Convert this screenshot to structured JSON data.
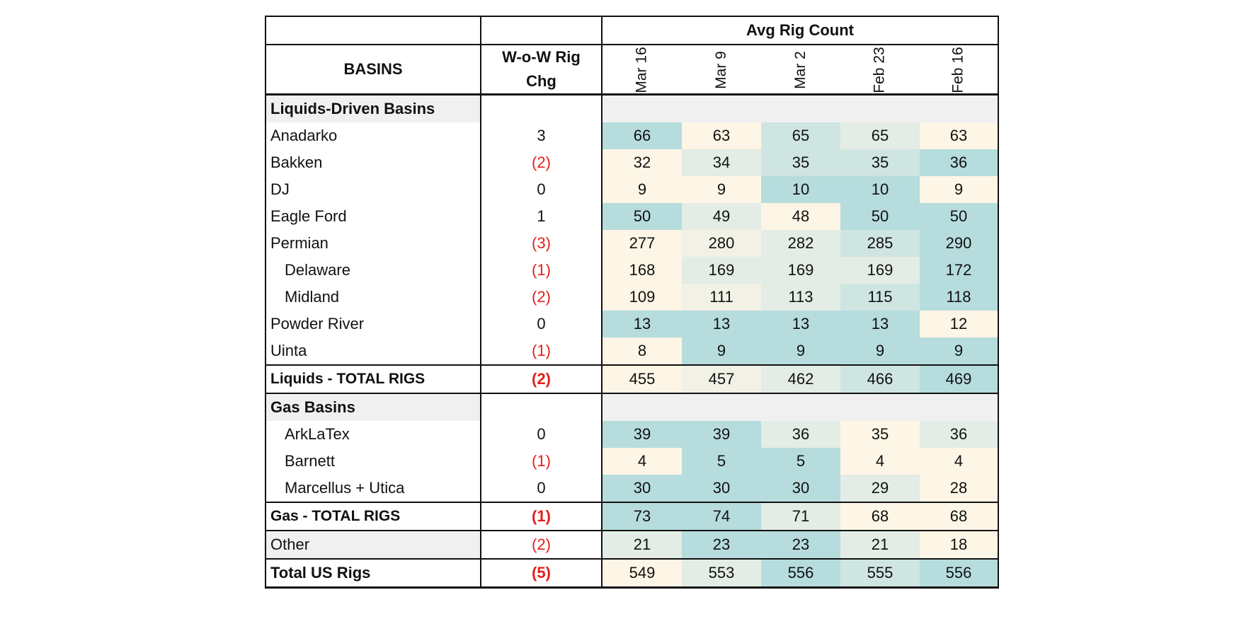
{
  "table": {
    "super_header": "Avg Rig Count",
    "col_basin": "BASINS",
    "col_chg_line1": "W-o-W Rig",
    "col_chg_line2": "Chg",
    "weeks": [
      "Mar 16",
      "Mar 9",
      "Mar 2",
      "Feb 23",
      "Feb 16"
    ],
    "colors": {
      "cold": "#b6dcdd",
      "cool": "#cfe5e2",
      "mid": "#e3ece5",
      "warmish": "#f1f1e6",
      "warm": "#fdf5e5",
      "negative_text": "#e0201c",
      "section_bg": "#f0f0f0"
    },
    "rows": [
      {
        "kind": "section",
        "name": "Liquids-Driven Basins"
      },
      {
        "kind": "row",
        "name": "Anadarko",
        "chg": "3",
        "vals": [
          "66",
          "63",
          "65",
          "65",
          "63"
        ],
        "shade": [
          "cold",
          "warm",
          "cool",
          "mid",
          "warm"
        ]
      },
      {
        "kind": "row",
        "name": "Bakken",
        "chg": "(2)",
        "vals": [
          "32",
          "34",
          "35",
          "35",
          "36"
        ],
        "shade": [
          "warm",
          "mid",
          "cool",
          "cool",
          "cold"
        ]
      },
      {
        "kind": "row",
        "name": "DJ",
        "chg": "0",
        "vals": [
          "9",
          "9",
          "10",
          "10",
          "9"
        ],
        "shade": [
          "warm",
          "warm",
          "cold",
          "cold",
          "warm"
        ]
      },
      {
        "kind": "row",
        "name": "Eagle Ford",
        "chg": "1",
        "vals": [
          "50",
          "49",
          "48",
          "50",
          "50"
        ],
        "shade": [
          "cold",
          "mid",
          "warm",
          "cold",
          "cold"
        ]
      },
      {
        "kind": "row",
        "name": "Permian",
        "chg": "(3)",
        "vals": [
          "277",
          "280",
          "282",
          "285",
          "290"
        ],
        "shade": [
          "warm",
          "warmish",
          "mid",
          "cool",
          "cold"
        ]
      },
      {
        "kind": "row",
        "name": "Delaware",
        "indent": true,
        "chg": "(1)",
        "vals": [
          "168",
          "169",
          "169",
          "169",
          "172"
        ],
        "shade": [
          "warm",
          "mid",
          "mid",
          "mid",
          "cold"
        ]
      },
      {
        "kind": "row",
        "name": "Midland",
        "indent": true,
        "chg": "(2)",
        "vals": [
          "109",
          "111",
          "113",
          "115",
          "118"
        ],
        "shade": [
          "warm",
          "warmish",
          "mid",
          "cool",
          "cold"
        ]
      },
      {
        "kind": "row",
        "name": "Powder River",
        "chg": "0",
        "vals": [
          "13",
          "13",
          "13",
          "13",
          "12"
        ],
        "shade": [
          "cold",
          "cold",
          "cold",
          "cold",
          "warm"
        ]
      },
      {
        "kind": "row",
        "name": "Uinta",
        "chg": "(1)",
        "vals": [
          "8",
          "9",
          "9",
          "9",
          "9"
        ],
        "shade": [
          "warm",
          "cold",
          "cold",
          "cold",
          "cold"
        ]
      },
      {
        "kind": "total",
        "name": "Liquids - TOTAL RIGS",
        "chg": "(2)",
        "vals": [
          "455",
          "457",
          "462",
          "466",
          "469"
        ],
        "shade": [
          "warm",
          "warmish",
          "mid",
          "cool",
          "cold"
        ]
      },
      {
        "kind": "section",
        "name": "Gas Basins"
      },
      {
        "kind": "row",
        "name": "ArkLaTex",
        "indent": true,
        "chg": "0",
        "vals": [
          "39",
          "39",
          "36",
          "35",
          "36"
        ],
        "shade": [
          "cold",
          "cold",
          "mid",
          "warm",
          "mid"
        ]
      },
      {
        "kind": "row",
        "name": "Barnett",
        "indent": true,
        "chg": "(1)",
        "vals": [
          "4",
          "5",
          "5",
          "4",
          "4"
        ],
        "shade": [
          "warm",
          "cold",
          "cold",
          "warm",
          "warm"
        ]
      },
      {
        "kind": "row",
        "name": "Marcellus + Utica",
        "indent": true,
        "chg": "0",
        "vals": [
          "30",
          "30",
          "30",
          "29",
          "28"
        ],
        "shade": [
          "cold",
          "cold",
          "cold",
          "mid",
          "warm"
        ]
      },
      {
        "kind": "total",
        "name": "Gas - TOTAL RIGS",
        "chg": "(1)",
        "vals": [
          "73",
          "74",
          "71",
          "68",
          "68"
        ],
        "shade": [
          "cold",
          "cold",
          "mid",
          "warm",
          "warm"
        ]
      },
      {
        "kind": "other",
        "name": "Other",
        "chg": "(2)",
        "vals": [
          "21",
          "23",
          "23",
          "21",
          "18"
        ],
        "shade": [
          "mid",
          "cold",
          "cold",
          "mid",
          "warm"
        ]
      },
      {
        "kind": "grand",
        "name": "Total US Rigs",
        "chg": "(5)",
        "vals": [
          "549",
          "553",
          "556",
          "555",
          "556"
        ],
        "shade": [
          "warm",
          "mid",
          "cold",
          "cool",
          "cold"
        ]
      }
    ]
  }
}
